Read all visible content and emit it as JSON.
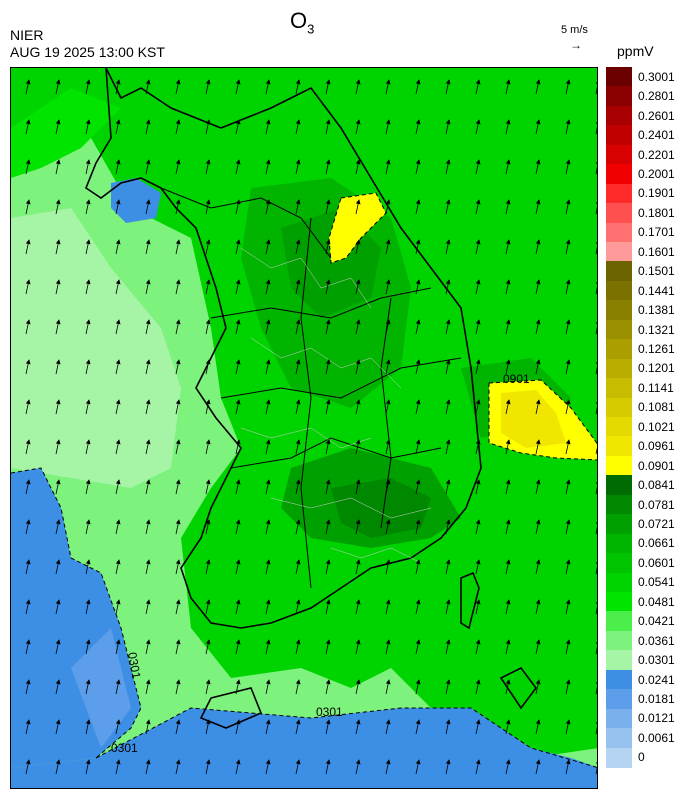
{
  "title": {
    "main": "O",
    "sub": "3"
  },
  "org": "NIER",
  "datetime": "AUG 19 2025 13:00 KST",
  "wind_reference": {
    "label": "5 m/s",
    "arrow": "→"
  },
  "unit": "ppmV",
  "contour_labels": [
    "0301",
    "0301",
    "0301",
    "0901"
  ],
  "legend": {
    "labels": [
      "0.3001",
      "0.2801",
      "0.2601",
      "0.2401",
      "0.2201",
      "0.2001",
      "0.1901",
      "0.1801",
      "0.1701",
      "0.1601",
      "0.1501",
      "0.1441",
      "0.1381",
      "0.1321",
      "0.1261",
      "0.1201",
      "0.1141",
      "0.1081",
      "0.1021",
      "0.0961",
      "0.0901",
      "0.0841",
      "0.0781",
      "0.0721",
      "0.0661",
      "0.0601",
      "0.0541",
      "0.0481",
      "0.0421",
      "0.0361",
      "0.0301",
      "0.0241",
      "0.0181",
      "0.0121",
      "0.0061",
      "0"
    ],
    "colors": [
      "#6b0000",
      "#8b0000",
      "#a80000",
      "#c00000",
      "#d80000",
      "#f00000",
      "#ff2a2a",
      "#ff5050",
      "#ff7070",
      "#ff9a9a",
      "#6b6300",
      "#7a7100",
      "#8a8000",
      "#9a8f00",
      "#aa9e00",
      "#b9ad00",
      "#c8bc00",
      "#d6cb00",
      "#e4da00",
      "#f0e600",
      "#ffff00",
      "#006b00",
      "#008800",
      "#00a000",
      "#00b400",
      "#00c400",
      "#00d400",
      "#00e400",
      "#4cee4c",
      "#7df27d",
      "#a6f5a6",
      "#3d8fe6",
      "#5c9ee9",
      "#7ab0ec",
      "#97c2ef",
      "#b5d4f2"
    ]
  }
}
